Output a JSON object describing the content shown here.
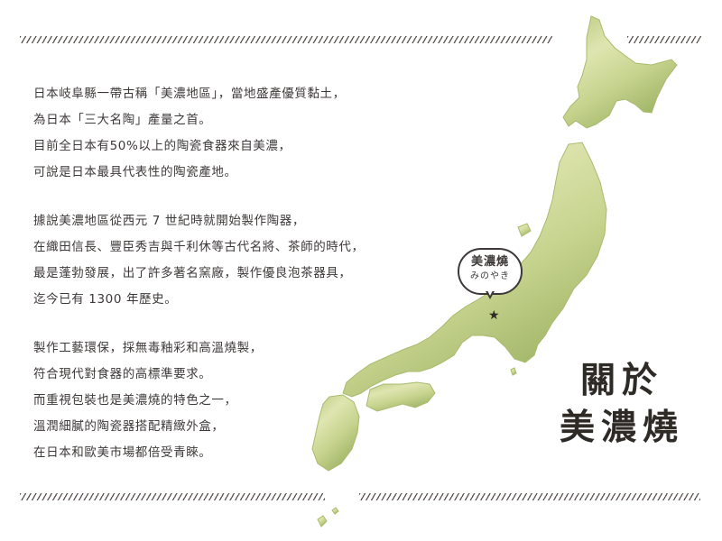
{
  "paragraphs": [
    [
      "日本岐阜縣一帶古稱「美濃地區」，當地盛產優質黏土，",
      "為日本「三大名陶」產量之首。",
      "目前全日本有50%以上的陶瓷食器來自美濃，",
      "可說是日本最具代表性的陶瓷產地。"
    ],
    [
      "據說美濃地區從西元 7 世紀時就開始製作陶器，",
      "在織田信長、豐臣秀吉與千利休等古代名將、茶師的時代，",
      "最是蓬勃發展，出了許多著名窯廠，製作優良泡茶器具，",
      "迄今已有 1300 年歷史。"
    ],
    [
      "製作工藝環保，採無毒釉彩和高溫燒製，",
      "符合現代對食器的高標準要求。",
      "而重視包裝也是美濃燒的特色之一，",
      "溫潤細膩的陶瓷器搭配精緻外盒，",
      "在日本和歐美市場都倍受青睞。"
    ]
  ],
  "title": {
    "line1": "關於",
    "line2": "美濃燒"
  },
  "map_label": {
    "main": "美濃燒",
    "sub": "みのやき"
  },
  "colors": {
    "text": "#3d3938",
    "map_light": "#e3e7b6",
    "map_mid": "#b7c77c",
    "map_dark": "#97ad5e"
  },
  "icons": {
    "marker": "star-icon"
  }
}
